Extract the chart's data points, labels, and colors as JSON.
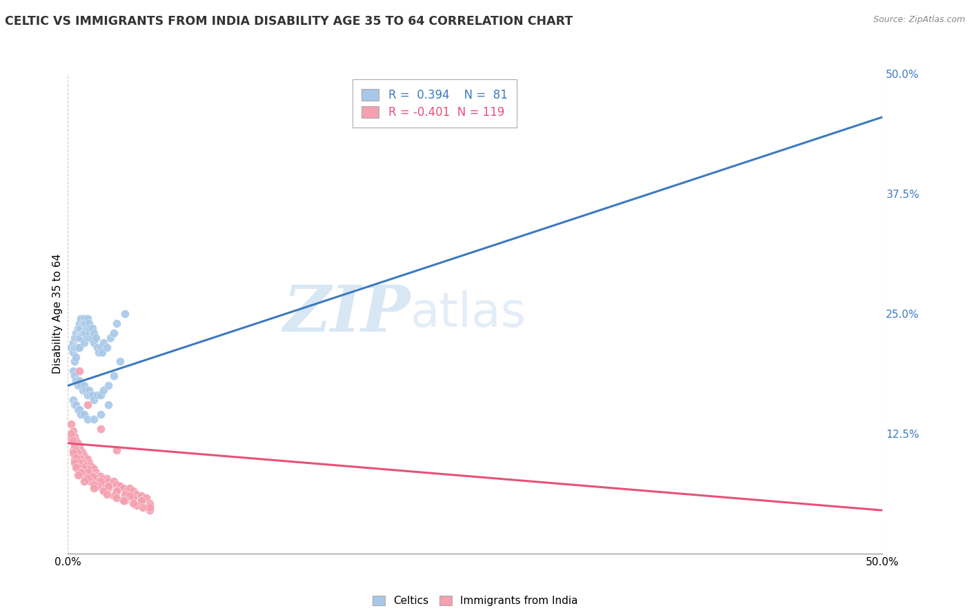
{
  "title": "CELTIC VS IMMIGRANTS FROM INDIA DISABILITY AGE 35 TO 64 CORRELATION CHART",
  "source": "Source: ZipAtlas.com",
  "ylabel": "Disability Age 35 to 64",
  "legend_celtics": "Celtics",
  "legend_india": "Immigrants from India",
  "R_celtics": 0.394,
  "N_celtics": 81,
  "R_india": -0.401,
  "N_india": 119,
  "celtics_color": "#a8c8e8",
  "india_color": "#f4a0b0",
  "celtics_line_color": "#3d7abf",
  "india_line_color": "#e8507a",
  "watermark_zip": "ZIP",
  "watermark_atlas": "atlas",
  "xmin": 0.0,
  "xmax": 0.5,
  "ymin": 0.0,
  "ymax": 0.5,
  "yticks": [
    0.125,
    0.25,
    0.375,
    0.5
  ],
  "ytick_labels": [
    "12.5%",
    "25.0%",
    "37.5%",
    "50.0%"
  ],
  "celtics_line_y0": 0.175,
  "celtics_line_y1": 0.455,
  "india_line_y0": 0.115,
  "india_line_y1": 0.045,
  "celtics_scatter_x": [
    0.002,
    0.003,
    0.003,
    0.004,
    0.004,
    0.004,
    0.005,
    0.005,
    0.005,
    0.005,
    0.006,
    0.006,
    0.006,
    0.007,
    0.007,
    0.007,
    0.007,
    0.008,
    0.008,
    0.008,
    0.009,
    0.009,
    0.01,
    0.01,
    0.01,
    0.01,
    0.011,
    0.011,
    0.012,
    0.012,
    0.012,
    0.013,
    0.013,
    0.014,
    0.014,
    0.015,
    0.015,
    0.016,
    0.016,
    0.017,
    0.018,
    0.019,
    0.02,
    0.021,
    0.022,
    0.024,
    0.026,
    0.028,
    0.03,
    0.035,
    0.003,
    0.004,
    0.005,
    0.006,
    0.007,
    0.008,
    0.009,
    0.01,
    0.011,
    0.012,
    0.013,
    0.014,
    0.015,
    0.016,
    0.018,
    0.02,
    0.022,
    0.025,
    0.028,
    0.032,
    0.003,
    0.004,
    0.005,
    0.006,
    0.007,
    0.008,
    0.01,
    0.012,
    0.016,
    0.02,
    0.025
  ],
  "celtics_scatter_y": [
    0.215,
    0.22,
    0.21,
    0.225,
    0.215,
    0.2,
    0.23,
    0.225,
    0.215,
    0.205,
    0.235,
    0.225,
    0.215,
    0.24,
    0.235,
    0.225,
    0.215,
    0.245,
    0.235,
    0.225,
    0.24,
    0.23,
    0.245,
    0.24,
    0.23,
    0.22,
    0.24,
    0.23,
    0.245,
    0.235,
    0.225,
    0.24,
    0.23,
    0.235,
    0.225,
    0.235,
    0.225,
    0.23,
    0.22,
    0.225,
    0.215,
    0.21,
    0.215,
    0.21,
    0.22,
    0.215,
    0.225,
    0.23,
    0.24,
    0.25,
    0.19,
    0.185,
    0.18,
    0.175,
    0.18,
    0.175,
    0.17,
    0.175,
    0.17,
    0.165,
    0.17,
    0.165,
    0.165,
    0.16,
    0.165,
    0.165,
    0.17,
    0.175,
    0.185,
    0.2,
    0.16,
    0.155,
    0.155,
    0.15,
    0.15,
    0.145,
    0.145,
    0.14,
    0.14,
    0.145,
    0.155
  ],
  "india_scatter_x": [
    0.002,
    0.002,
    0.003,
    0.003,
    0.003,
    0.004,
    0.004,
    0.004,
    0.004,
    0.005,
    0.005,
    0.005,
    0.005,
    0.006,
    0.006,
    0.006,
    0.006,
    0.007,
    0.007,
    0.007,
    0.007,
    0.008,
    0.008,
    0.008,
    0.008,
    0.009,
    0.009,
    0.009,
    0.01,
    0.01,
    0.01,
    0.011,
    0.011,
    0.012,
    0.012,
    0.013,
    0.013,
    0.014,
    0.015,
    0.015,
    0.016,
    0.017,
    0.018,
    0.019,
    0.02,
    0.021,
    0.022,
    0.024,
    0.025,
    0.026,
    0.028,
    0.03,
    0.032,
    0.034,
    0.036,
    0.038,
    0.04,
    0.042,
    0.045,
    0.048,
    0.002,
    0.003,
    0.004,
    0.005,
    0.006,
    0.007,
    0.008,
    0.009,
    0.01,
    0.012,
    0.014,
    0.016,
    0.018,
    0.02,
    0.025,
    0.03,
    0.035,
    0.04,
    0.045,
    0.05,
    0.003,
    0.005,
    0.007,
    0.009,
    0.012,
    0.015,
    0.02,
    0.025,
    0.03,
    0.038,
    0.045,
    0.05,
    0.004,
    0.006,
    0.008,
    0.01,
    0.014,
    0.018,
    0.022,
    0.028,
    0.035,
    0.042,
    0.05,
    0.005,
    0.008,
    0.012,
    0.016,
    0.022,
    0.03,
    0.04,
    0.05,
    0.006,
    0.01,
    0.016,
    0.024,
    0.034,
    0.046,
    0.007,
    0.012,
    0.02,
    0.03
  ],
  "india_scatter_y": [
    0.135,
    0.12,
    0.128,
    0.118,
    0.108,
    0.122,
    0.115,
    0.108,
    0.098,
    0.118,
    0.112,
    0.105,
    0.095,
    0.115,
    0.108,
    0.1,
    0.092,
    0.112,
    0.105,
    0.098,
    0.088,
    0.108,
    0.102,
    0.095,
    0.085,
    0.105,
    0.098,
    0.09,
    0.102,
    0.096,
    0.088,
    0.1,
    0.092,
    0.098,
    0.088,
    0.095,
    0.085,
    0.092,
    0.09,
    0.082,
    0.088,
    0.085,
    0.082,
    0.08,
    0.08,
    0.078,
    0.075,
    0.078,
    0.075,
    0.072,
    0.075,
    0.072,
    0.07,
    0.068,
    0.065,
    0.068,
    0.065,
    0.062,
    0.06,
    0.058,
    0.125,
    0.118,
    0.112,
    0.108,
    0.105,
    0.1,
    0.098,
    0.095,
    0.092,
    0.088,
    0.082,
    0.08,
    0.075,
    0.072,
    0.068,
    0.065,
    0.062,
    0.058,
    0.055,
    0.052,
    0.105,
    0.1,
    0.095,
    0.09,
    0.085,
    0.08,
    0.075,
    0.07,
    0.065,
    0.06,
    0.055,
    0.05,
    0.095,
    0.09,
    0.085,
    0.08,
    0.075,
    0.07,
    0.065,
    0.06,
    0.055,
    0.05,
    0.045,
    0.09,
    0.085,
    0.078,
    0.072,
    0.065,
    0.058,
    0.052,
    0.048,
    0.082,
    0.075,
    0.068,
    0.062,
    0.055,
    0.048,
    0.19,
    0.155,
    0.13,
    0.108
  ]
}
